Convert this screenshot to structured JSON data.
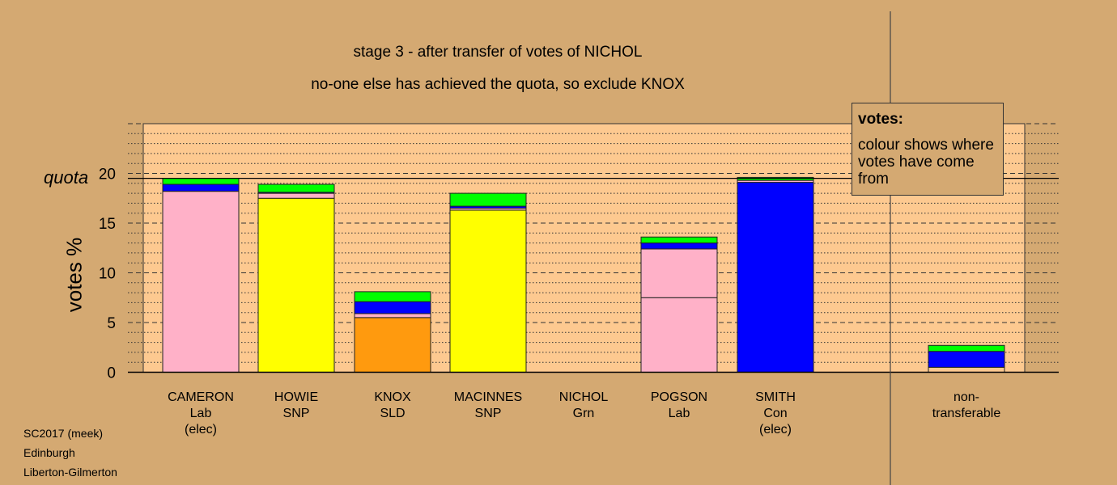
{
  "title_line1": "stage 3 - after transfer of votes of NICHOL",
  "title_line2": "no-one else has achieved the quota, so exclude KNOX",
  "footer": [
    "SC2017 (meek)",
    "Edinburgh",
    "Liberton-Gilmerton"
  ],
  "legend": {
    "title": "votes:",
    "text": "colour shows where votes have come from"
  },
  "quota_label": "quota",
  "colors": {
    "background": "#d4a972",
    "plot_bg": "#fdc990",
    "lab": "#ffb1c8",
    "snp": "#ffff00",
    "sld": "#ff9a0e",
    "con": "#0000ff",
    "grn": "#00ff00"
  },
  "chart_data": {
    "type": "bar",
    "stacked": true,
    "ylabel": "votes %",
    "ylim": [
      0,
      25
    ],
    "yticks": [
      0,
      5,
      10,
      15,
      20
    ],
    "quota": 19.5,
    "grid": "dashed at 5s, dotted at 1s",
    "categories": [
      {
        "name": "CAMERON",
        "party": "Lab",
        "note": "(elec)"
      },
      {
        "name": "HOWIE",
        "party": "SNP",
        "note": ""
      },
      {
        "name": "KNOX",
        "party": "SLD",
        "note": ""
      },
      {
        "name": "MACINNES",
        "party": "SNP",
        "note": ""
      },
      {
        "name": "NICHOL",
        "party": "Grn",
        "note": ""
      },
      {
        "name": "POGSON",
        "party": "Lab",
        "note": ""
      },
      {
        "name": "SMITH",
        "party": "Con",
        "note": "(elec)"
      },
      {
        "name": "non-transferable",
        "line1": "non-",
        "line2": "transferable"
      }
    ],
    "bars": [
      [
        {
          "value": 18.2,
          "color": "lab"
        },
        {
          "value": 0.7,
          "color": "con"
        },
        {
          "value": 0.6,
          "color": "grn"
        }
      ],
      [
        {
          "value": 17.5,
          "color": "snp"
        },
        {
          "value": 0.5,
          "color": "lab"
        },
        {
          "value": 0.1,
          "color": "con"
        },
        {
          "value": 0.8,
          "color": "grn"
        }
      ],
      [
        {
          "value": 5.5,
          "color": "sld"
        },
        {
          "value": 0.4,
          "color": "lab"
        },
        {
          "value": 1.2,
          "color": "con"
        },
        {
          "value": 1.0,
          "color": "grn"
        }
      ],
      [
        {
          "value": 16.3,
          "color": "snp"
        },
        {
          "value": 0.2,
          "color": "lab"
        },
        {
          "value": 0.2,
          "color": "con"
        },
        {
          "value": 1.3,
          "color": "grn"
        }
      ],
      [],
      [
        {
          "value": 7.5,
          "color": "lab"
        },
        {
          "value": 4.9,
          "color": "lab"
        },
        {
          "value": 0.6,
          "color": "con"
        },
        {
          "value": 0.6,
          "color": "grn"
        }
      ],
      [
        {
          "value": 19.1,
          "color": "con"
        },
        {
          "value": 0.2,
          "color": "lab"
        },
        {
          "value": 0.3,
          "color": "grn"
        }
      ],
      [
        {
          "value": 0.5,
          "color": "none"
        },
        {
          "value": 1.6,
          "color": "con"
        },
        {
          "value": 0.6,
          "color": "grn"
        }
      ]
    ]
  }
}
